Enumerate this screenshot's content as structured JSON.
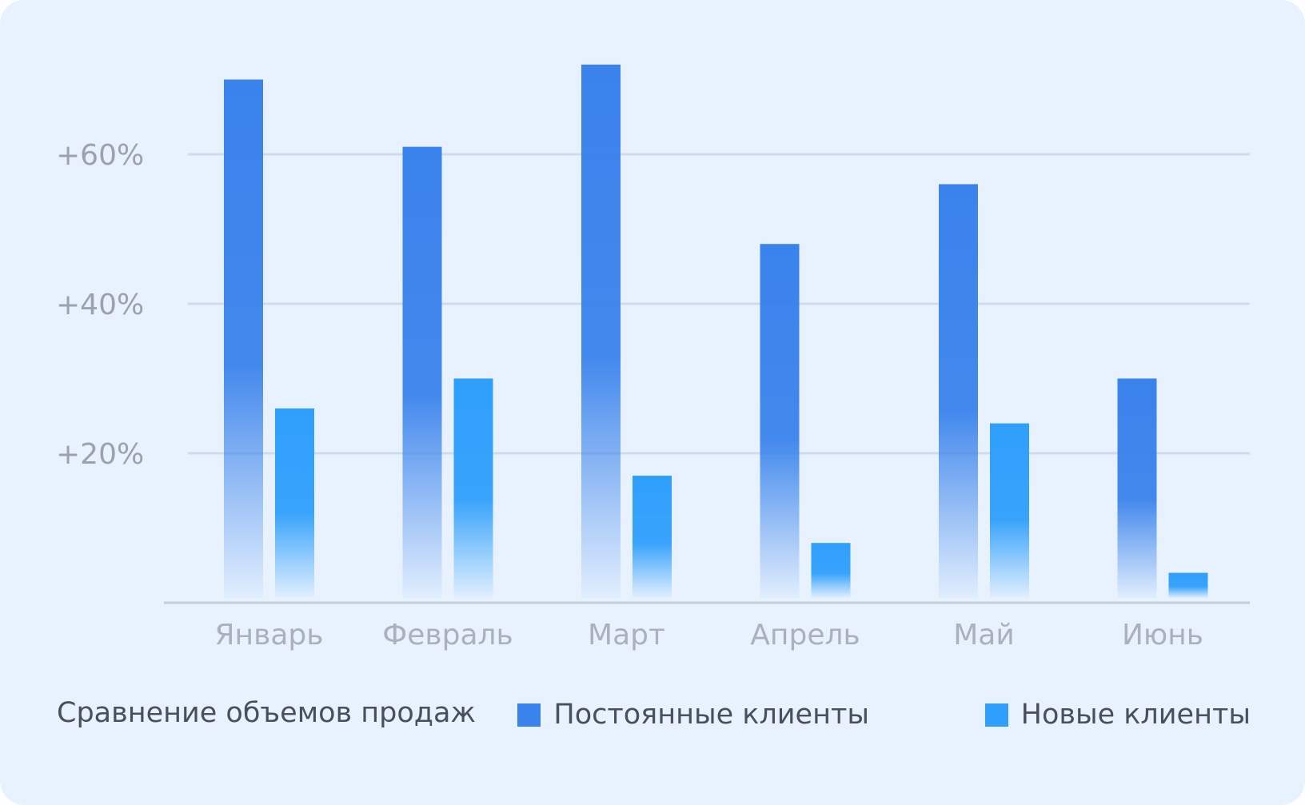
{
  "chart_data": {
    "type": "bar",
    "title": "Сравнение объемов продаж",
    "xlabel": "",
    "ylabel": "",
    "categories": [
      "Январь",
      "Февраль",
      "Март",
      "Апрель",
      "Май",
      "Июнь"
    ],
    "series": [
      {
        "name": "Постоянные клиенты",
        "color": "#3a83ec",
        "values": [
          70,
          61,
          72,
          48,
          56,
          30
        ]
      },
      {
        "name": "Новые клиенты",
        "color": "#2f9ffc",
        "values": [
          26,
          30,
          17,
          8,
          24,
          4
        ]
      }
    ],
    "ylim": [
      0,
      75
    ],
    "yticks": [
      20,
      40,
      60
    ],
    "ytick_labels": [
      "+20%",
      "+40%",
      "+60%"
    ],
    "grid": true,
    "legend_position": "bottom-right"
  }
}
